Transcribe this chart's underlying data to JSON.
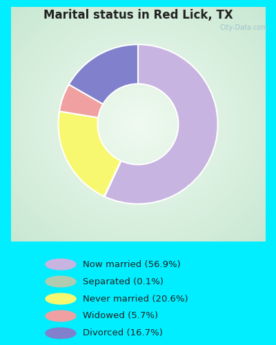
{
  "title": "Marital status in Red Lick, TX",
  "slices": [
    {
      "label": "Now married (56.9%)",
      "value": 56.9,
      "color": "#c8b4e0"
    },
    {
      "label": "Separated (0.1%)",
      "value": 0.1,
      "color": "#b0ccb0"
    },
    {
      "label": "Never married (20.6%)",
      "value": 20.6,
      "color": "#f8f870"
    },
    {
      "label": "Widowed (5.7%)",
      "value": 5.7,
      "color": "#f0a0a0"
    },
    {
      "label": "Divorced (16.7%)",
      "value": 16.7,
      "color": "#8080cc"
    }
  ],
  "bg_outer": "#00eeff",
  "bg_chart_edge": "#c8e8c8",
  "bg_chart_center": "#f0faf0",
  "title_color": "#222222",
  "legend_text_color": "#222222",
  "start_angle": 90,
  "watermark": "City-Data.com"
}
